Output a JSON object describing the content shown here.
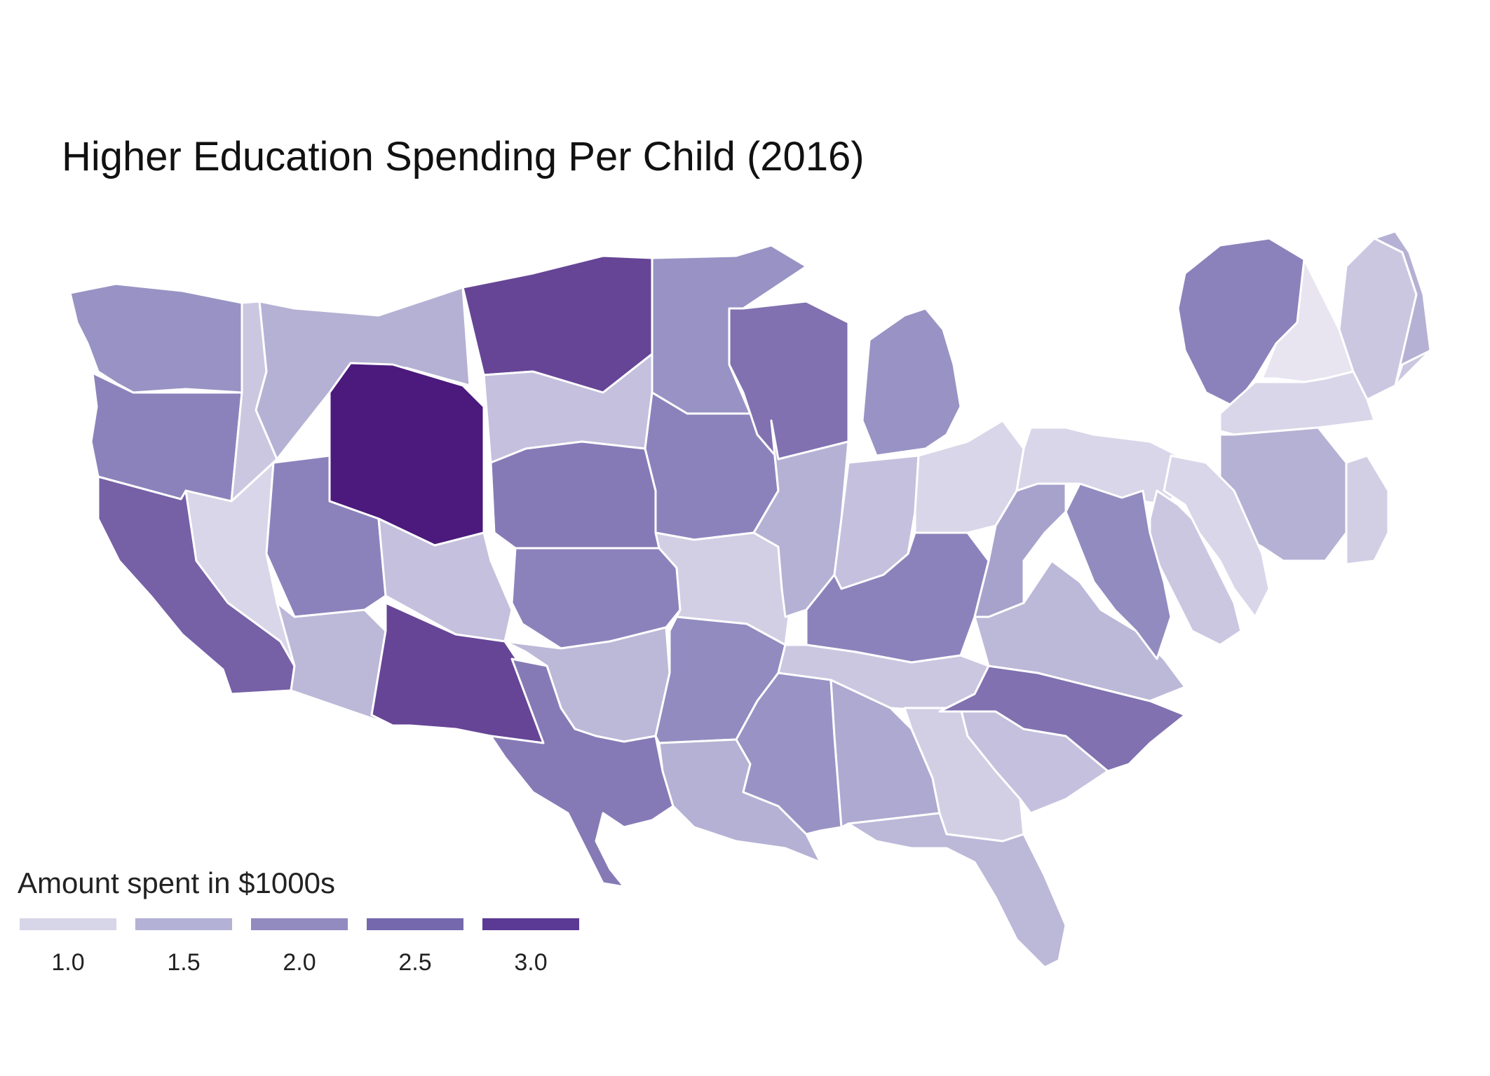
{
  "title": "Higher Education Spending Per Child (2016)",
  "legend": {
    "title": "Amount spent in $1000s",
    "items": [
      {
        "label": "1.0",
        "color": "#d7d5e8"
      },
      {
        "label": "1.5",
        "color": "#b3b1d5"
      },
      {
        "label": "2.0",
        "color": "#918bc0"
      },
      {
        "label": "2.5",
        "color": "#7568ad"
      },
      {
        "label": "3.0",
        "color": "#5a3a94"
      }
    ]
  },
  "map_data": {
    "type": "cartogram-choropleth",
    "region": "United States (lower 48)",
    "scale": {
      "min": 0.7,
      "max": 3.3
    },
    "colors": {
      "low": "#efedf5",
      "high": "#4b1a7c",
      "border": "#ffffff"
    },
    "states": [
      {
        "id": "WA",
        "value": 1.9
      },
      {
        "id": "OR",
        "value": 2.1
      },
      {
        "id": "CA",
        "value": 2.5
      },
      {
        "id": "NV",
        "value": 1.0
      },
      {
        "id": "ID",
        "value": 1.2
      },
      {
        "id": "MT",
        "value": 1.5
      },
      {
        "id": "WY",
        "value": 3.3
      },
      {
        "id": "UT",
        "value": 2.1
      },
      {
        "id": "AZ",
        "value": 1.4
      },
      {
        "id": "CO",
        "value": 1.3
      },
      {
        "id": "NM",
        "value": 2.8
      },
      {
        "id": "ND",
        "value": 2.8
      },
      {
        "id": "SD",
        "value": 1.3
      },
      {
        "id": "NE",
        "value": 2.2
      },
      {
        "id": "KS",
        "value": 2.1
      },
      {
        "id": "OK",
        "value": 1.4
      },
      {
        "id": "TX",
        "value": 2.2
      },
      {
        "id": "MN",
        "value": 1.9
      },
      {
        "id": "IA",
        "value": 2.1
      },
      {
        "id": "MO",
        "value": 1.1
      },
      {
        "id": "AR",
        "value": 2.0
      },
      {
        "id": "LA",
        "value": 1.5
      },
      {
        "id": "WI",
        "value": 2.3
      },
      {
        "id": "IL",
        "value": 1.5
      },
      {
        "id": "MI",
        "value": 1.9
      },
      {
        "id": "IN",
        "value": 1.3
      },
      {
        "id": "OH",
        "value": 1.0
      },
      {
        "id": "KY",
        "value": 2.1
      },
      {
        "id": "TN",
        "value": 1.2
      },
      {
        "id": "MS",
        "value": 1.9
      },
      {
        "id": "AL",
        "value": 1.6
      },
      {
        "id": "GA",
        "value": 1.1
      },
      {
        "id": "FL",
        "value": 1.4
      },
      {
        "id": "SC",
        "value": 1.3
      },
      {
        "id": "NC",
        "value": 2.3
      },
      {
        "id": "VA",
        "value": 1.4
      },
      {
        "id": "WV",
        "value": 1.7
      },
      {
        "id": "PA",
        "value": 1.0
      },
      {
        "id": "NY",
        "value": 2.1
      },
      {
        "id": "VT",
        "value": 0.8
      },
      {
        "id": "NH",
        "value": 1.2
      },
      {
        "id": "ME",
        "value": 1.5
      },
      {
        "id": "MA",
        "value": 1.0
      },
      {
        "id": "CT",
        "value": 1.5
      },
      {
        "id": "RI",
        "value": 1.1
      },
      {
        "id": "NJ",
        "value": 1.0
      },
      {
        "id": "DE",
        "value": 1.2
      },
      {
        "id": "MD",
        "value": 2.0
      }
    ]
  }
}
